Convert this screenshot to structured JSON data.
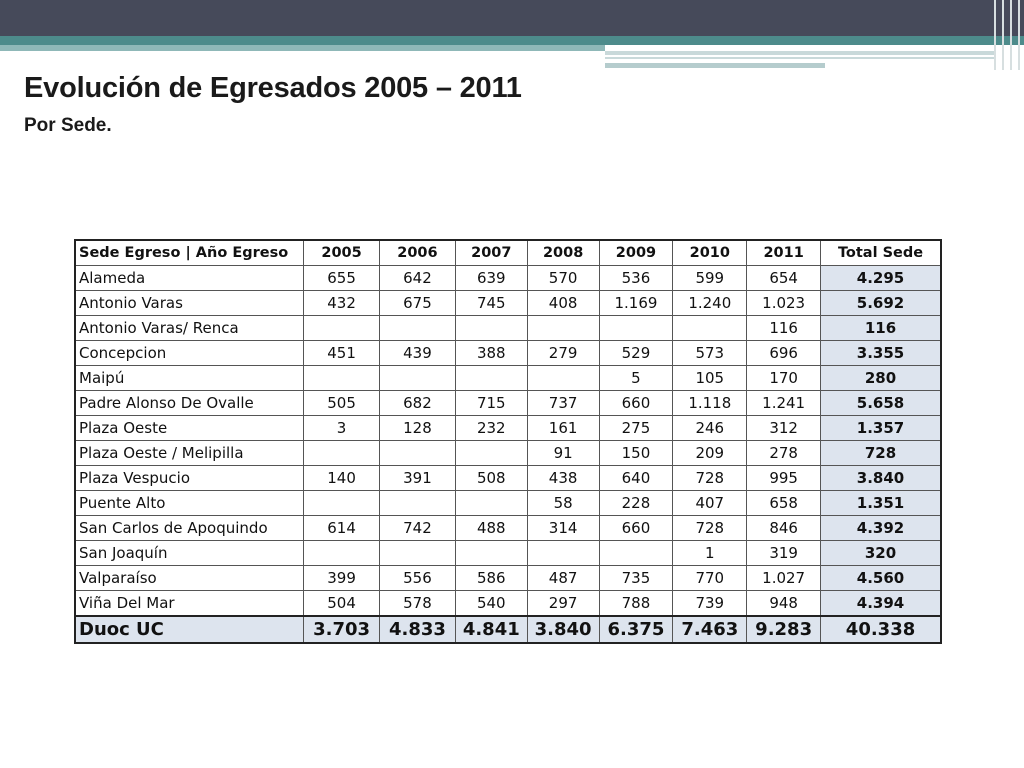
{
  "slide": {
    "title": "Evolución de Egresados 2005 – 2011",
    "subtitle": "Por Sede."
  },
  "table": {
    "headers": [
      "Sede Egreso | Año Egreso",
      "2005",
      "2006",
      "2007",
      "2008",
      "2009",
      "2010",
      "2011",
      "Total Sede"
    ],
    "rows": [
      [
        "Alameda",
        "655",
        "642",
        "639",
        "570",
        "536",
        "599",
        "654",
        "4.295"
      ],
      [
        "Antonio Varas",
        "432",
        "675",
        "745",
        "408",
        "1.169",
        "1.240",
        "1.023",
        "5.692"
      ],
      [
        "Antonio Varas/ Renca",
        "",
        "",
        "",
        "",
        "",
        "",
        "116",
        "116"
      ],
      [
        "Concepcion",
        "451",
        "439",
        "388",
        "279",
        "529",
        "573",
        "696",
        "3.355"
      ],
      [
        "Maipú",
        "",
        "",
        "",
        "",
        "5",
        "105",
        "170",
        "280"
      ],
      [
        "Padre Alonso De Ovalle",
        "505",
        "682",
        "715",
        "737",
        "660",
        "1.118",
        "1.241",
        "5.658"
      ],
      [
        "Plaza Oeste",
        "3",
        "128",
        "232",
        "161",
        "275",
        "246",
        "312",
        "1.357"
      ],
      [
        "Plaza Oeste / Melipilla",
        "",
        "",
        "",
        "91",
        "150",
        "209",
        "278",
        "728"
      ],
      [
        "Plaza Vespucio",
        "140",
        "391",
        "508",
        "438",
        "640",
        "728",
        "995",
        "3.840"
      ],
      [
        "Puente Alto",
        "",
        "",
        "",
        "58",
        "228",
        "407",
        "658",
        "1.351"
      ],
      [
        "San Carlos de Apoquindo",
        "614",
        "742",
        "488",
        "314",
        "660",
        "728",
        "846",
        "4.392"
      ],
      [
        "San Joaquín",
        "",
        "",
        "",
        "",
        "",
        "1",
        "319",
        "320"
      ],
      [
        "Valparaíso",
        "399",
        "556",
        "586",
        "487",
        "735",
        "770",
        "1.027",
        "4.560"
      ],
      [
        "Viña Del Mar",
        "504",
        "578",
        "540",
        "297",
        "788",
        "739",
        "948",
        "4.394"
      ]
    ],
    "footer": [
      "Duoc UC",
      "3.703",
      "4.833",
      "4.841",
      "3.840",
      "6.375",
      "7.463",
      "9.283",
      "40.338"
    ]
  }
}
